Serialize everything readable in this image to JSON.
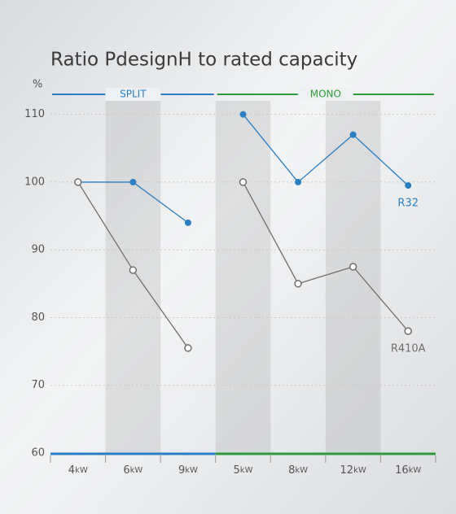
{
  "chart_data": {
    "type": "line",
    "title": "Ratio PdesignH to rated capacity",
    "y_label": "%",
    "groups": [
      {
        "name": "SPLIT",
        "color": "#2a7fc4",
        "categories": [
          "4kW",
          "6kW",
          "9kW"
        ]
      },
      {
        "name": "MONO",
        "color": "#2e9a3a",
        "categories": [
          "5kW",
          "8kW",
          "12kW",
          "16kW"
        ]
      }
    ],
    "series": [
      {
        "name": "R32",
        "color": "#2a7fc4",
        "values": [
          100,
          100,
          94,
          110,
          100,
          107,
          99.5
        ]
      },
      {
        "name": "R410A",
        "color": "#6e6e6e",
        "values": [
          100,
          87,
          75.5,
          100,
          85,
          87.5,
          78
        ]
      }
    ],
    "ylim": [
      60,
      112
    ],
    "yticks": [
      60,
      70,
      80,
      90,
      100,
      110
    ],
    "grid": true
  }
}
